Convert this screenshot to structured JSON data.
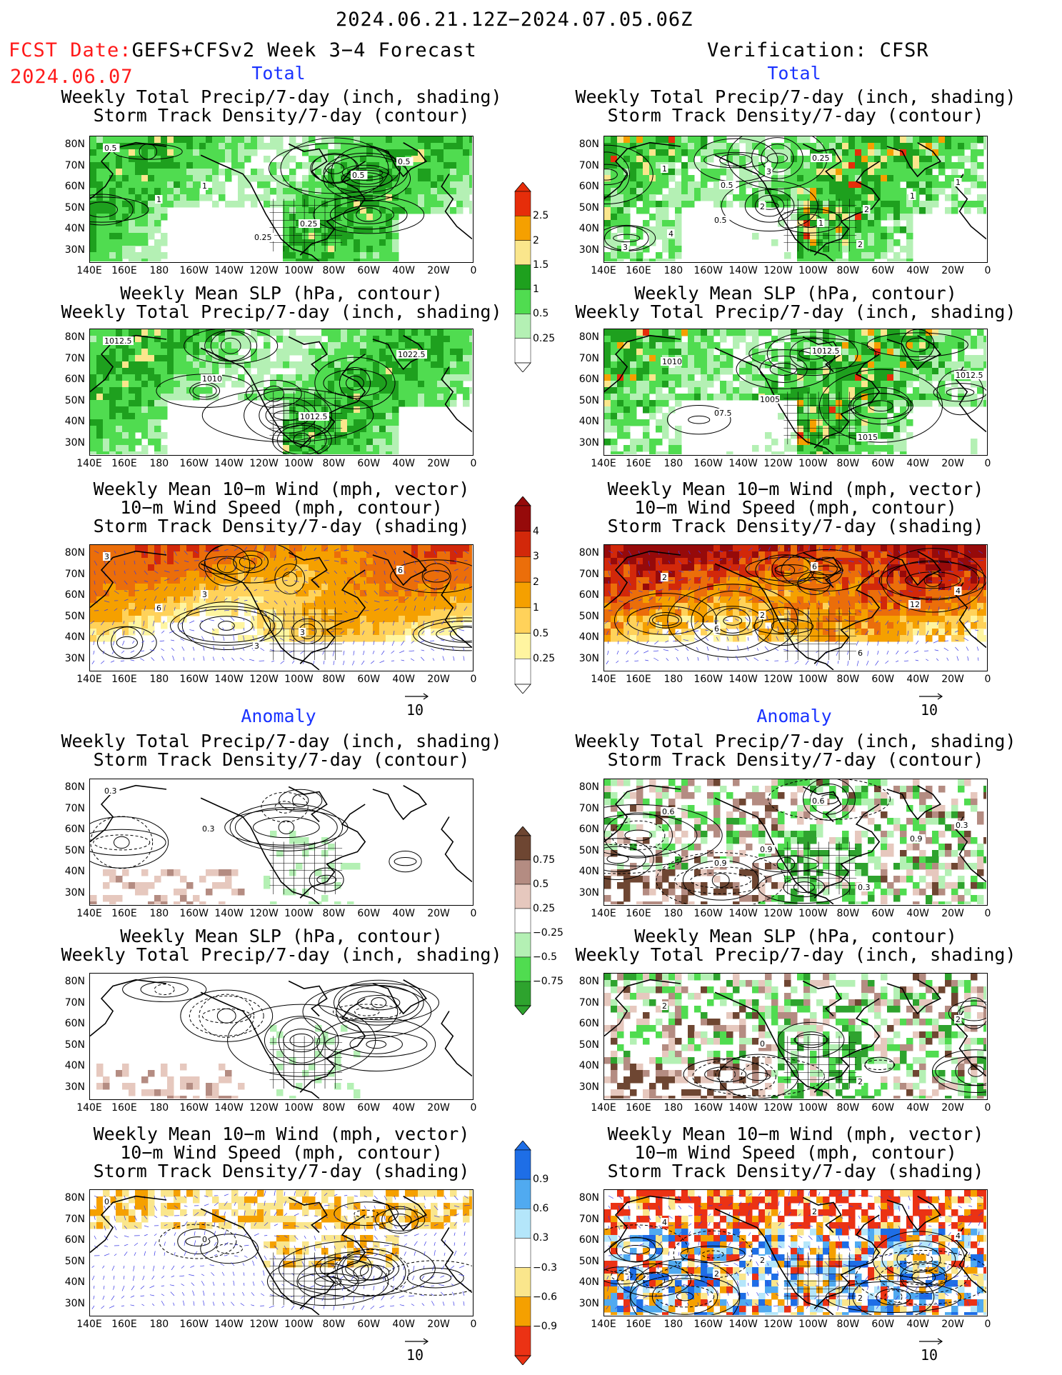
{
  "header": {
    "date_range": "2024.06.21.12Z−2024.07.05.06Z",
    "fcst_label": "FCST Date:",
    "fcst_title": "GEFS+CFSv2 Week 3−4 Forecast",
    "fcst_date": "2024.06.07",
    "verif_title": "Verification: CFSR"
  },
  "sections": {
    "total": "Total",
    "anomaly": "Anomaly"
  },
  "titles": {
    "precip_storm": [
      "Weekly Total Precip/7-day (inch, shading)",
      "Storm Track Density/7-day (contour)"
    ],
    "slp_precip": [
      "Weekly Mean SLP (hPa, contour)",
      "Weekly Total Precip/7-day (inch, shading)"
    ],
    "wind": [
      "Weekly Mean 10−m Wind (mph, vector)",
      "10−m Wind Speed (mph, contour)",
      "Storm Track Density/7-day (shading)"
    ]
  },
  "axes": {
    "lat_ticks": [
      "80N",
      "70N",
      "60N",
      "50N",
      "40N",
      "30N"
    ],
    "lon_ticks": [
      "140E",
      "160E",
      "180",
      "160W",
      "140W",
      "120W",
      "100W",
      "80W",
      "60W",
      "40W",
      "20W",
      "0"
    ]
  },
  "vector_ref": "10",
  "colorbars": {
    "precip_total": [
      "2.5",
      "2",
      "1.5",
      "1",
      "0.5",
      "0.25"
    ],
    "storm_total": [
      "4",
      "3",
      "2",
      "1",
      "0.5",
      "0.25"
    ],
    "precip_anom": [
      "0.75",
      "0.5",
      "0.25",
      "−0.25",
      "−0.5",
      "−0.75"
    ],
    "storm_anom": [
      "0.9",
      "0.6",
      "0.3",
      "−0.3",
      "−0.6",
      "−0.9"
    ]
  },
  "colors": {
    "precip_total": [
      "#ffffff",
      "#b4f0b4",
      "#50dc50",
      "#1ea01e",
      "#fae68c",
      "#f5a000",
      "#e62d0a"
    ],
    "storm_total": [
      "#ffffff",
      "#fff5a0",
      "#ffd25a",
      "#f5a000",
      "#eb6e0a",
      "#d2280a",
      "#960a0a"
    ],
    "precip_anom": [
      "#2ea32e",
      "#50dc50",
      "#b4f0b4",
      "#ffffff",
      "#e6c8be",
      "#b48c82",
      "#6e4632"
    ],
    "storm_anom": [
      "#eb3214",
      "#f5a000",
      "#fae68c",
      "#ffffff",
      "#b4e6fa",
      "#50aaf0",
      "#1e6ee6"
    ]
  },
  "contour_labels": {
    "p1_left": [
      "0.5",
      "1",
      "0.25",
      "0.5",
      "1",
      "0.25",
      "0.5"
    ],
    "p1_right": [
      "1",
      "2",
      "2",
      "1",
      "0.5",
      "0.25",
      "1",
      "4",
      "3",
      "2",
      "3",
      "0.5",
      "1"
    ],
    "p2_left": [
      "1012.5",
      "1010",
      "1012.5",
      "1022.5"
    ],
    "p2_right": [
      "1010",
      "1005",
      "1015",
      "1012.5",
      "07.5",
      "1012.5"
    ],
    "p3_left": [
      "3",
      "3",
      "3",
      "6",
      "6",
      "3"
    ],
    "p3_right": [
      "2",
      "2",
      "6",
      "4",
      "6",
      "6",
      "12"
    ],
    "p4_left": [
      "0.3",
      "0.3"
    ],
    "p4_right": [
      "0.6",
      "0.9",
      "0.3",
      "0.3",
      "0.9",
      "0.6",
      "0.9"
    ],
    "p5_right": [
      "2",
      "0",
      "2",
      "2"
    ],
    "p6_left": [
      "0",
      "0"
    ],
    "p6_right": [
      "4",
      "2",
      "2",
      "4",
      "2",
      "2"
    ]
  }
}
